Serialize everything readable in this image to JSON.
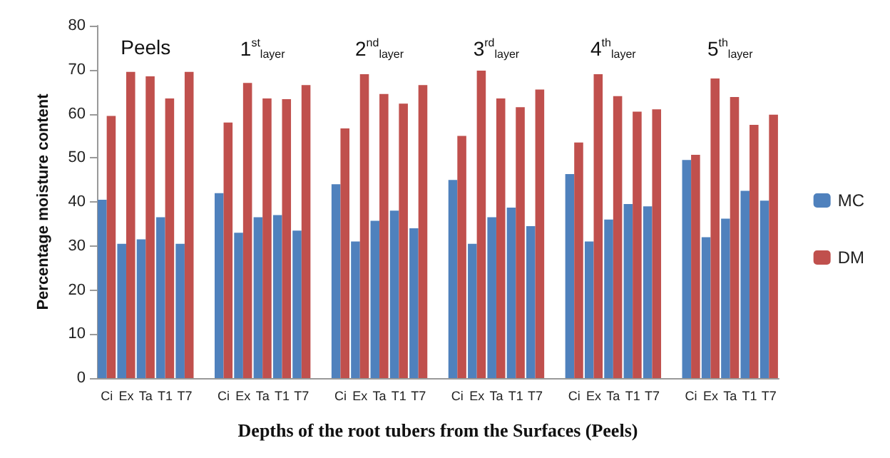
{
  "chart_data": {
    "type": "bar",
    "xlabel": "Depths of the root tubers from the Surfaces (Peels)",
    "ylabel": "Percentage moisture content",
    "categories": [
      "Ci",
      "Ex",
      "Ta",
      "T1",
      "T7",
      null,
      "Ci",
      "Ex",
      "Ta",
      "T1",
      "T7",
      null,
      "Ci",
      "Ex",
      "Ta",
      "T1",
      "T7",
      null,
      "Ci",
      "Ex",
      "Ta",
      "T1",
      "T7",
      null,
      "Ci",
      "Ex",
      "Ta",
      "T1",
      "T7",
      null,
      "Ci",
      "Ex",
      "Ta",
      "T1",
      "T7"
    ],
    "series": [
      {
        "name": "MC",
        "color": "#4f81bd",
        "values": [
          40.5,
          30.5,
          31.5,
          36.5,
          30.5,
          null,
          42,
          33,
          36.5,
          37,
          33.5,
          null,
          44,
          31,
          35.7,
          38,
          34,
          null,
          45,
          30.5,
          36.5,
          38.7,
          34.5,
          null,
          46.3,
          31,
          36,
          39.5,
          39,
          null,
          49.5,
          32,
          36.2,
          42.5,
          40.3
        ]
      },
      {
        "name": "DM",
        "color": "#c0504d",
        "values": [
          59.5,
          69.5,
          68.5,
          63.5,
          69.5,
          null,
          58,
          67,
          63.5,
          63.3,
          66.5,
          null,
          56.7,
          69,
          64.5,
          62.3,
          66.5,
          null,
          55,
          69.8,
          63.5,
          61.5,
          65.5,
          null,
          53.5,
          69,
          64,
          60.5,
          61,
          null,
          50.7,
          68,
          63.8,
          57.5,
          59.8
        ]
      }
    ],
    "ylim": [
      0,
      80
    ],
    "yticks": [
      0,
      10,
      20,
      30,
      40,
      50,
      60,
      70,
      80
    ],
    "grid": false,
    "legend": "right",
    "annotations": [
      "Peels",
      "1$^{st}$$_{layer}$",
      "2$^{nd}$$_{layer}$",
      "3$^{rd}$$_{layer}$",
      "4$^{th}$$_{layer}$",
      "5$^{th}$$_{layer}$"
    ]
  }
}
